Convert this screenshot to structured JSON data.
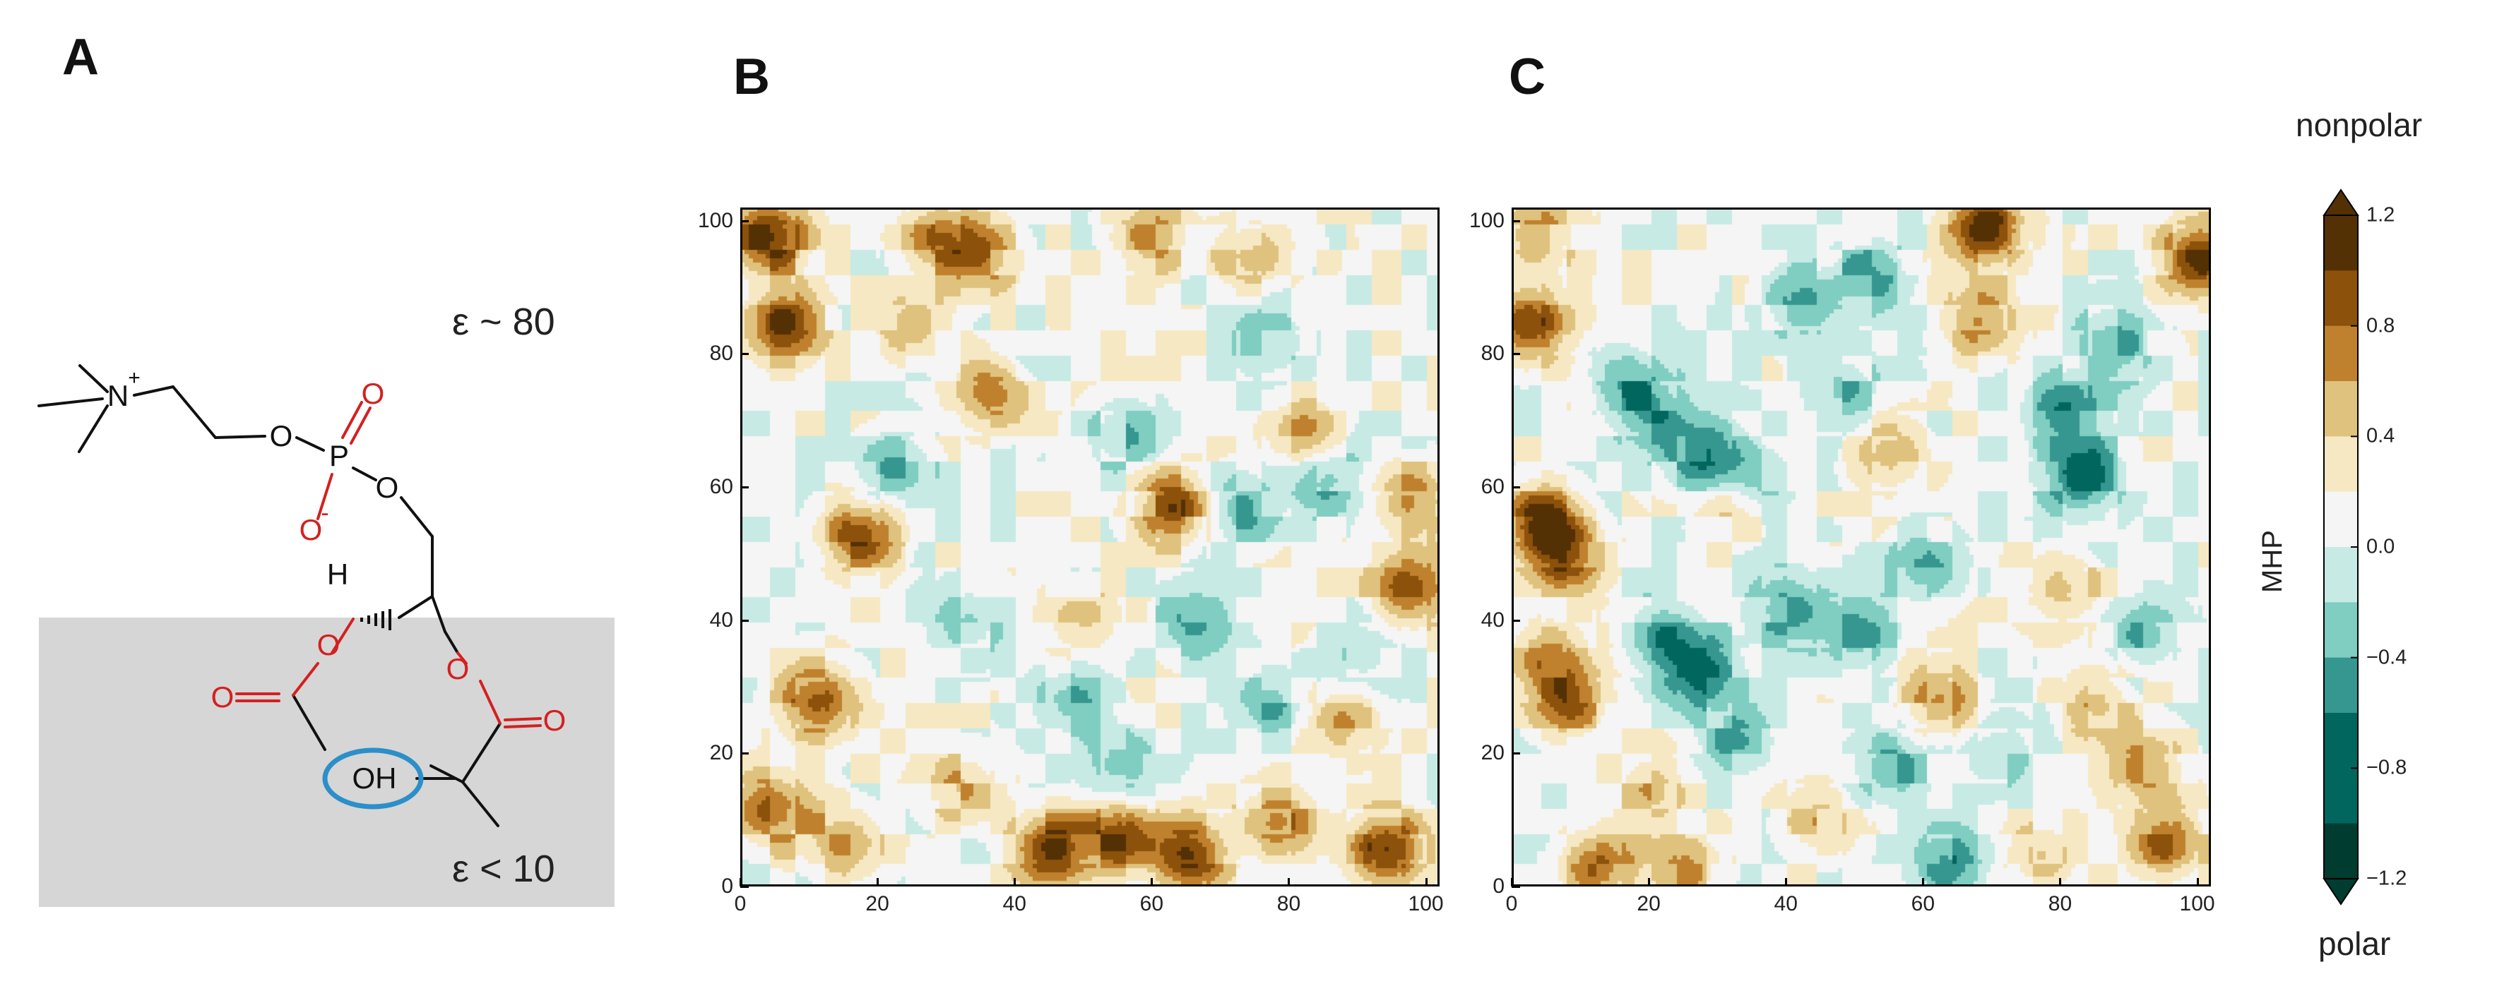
{
  "panels": {
    "a": "A",
    "b": "B",
    "c": "C"
  },
  "molecule": {
    "epsilon_top": "ε ~ 80",
    "epsilon_bottom": "ε < 10",
    "atom_N": "N",
    "charge_plus": "+",
    "atom_P": "P",
    "atom_O_labels": [
      "O",
      "O",
      "O",
      "O",
      "O",
      "O",
      "O"
    ],
    "charge_minus": "-",
    "atom_H": "H",
    "hydroxyl": "OH",
    "colors": {
      "ester": "#d42020",
      "hydroxyl_ring": "#2b8fc9",
      "membrane": "#d6d6d6",
      "bonds": "#111111"
    }
  },
  "chart_data": [
    {
      "type": "heatmap",
      "panel": "B",
      "x_ticks": [
        "0",
        "20",
        "40",
        "60",
        "80",
        "100"
      ],
      "y_ticks": [
        "0",
        "20",
        "40",
        "60",
        "80",
        "100"
      ],
      "xlim": [
        0,
        102
      ],
      "ylim": [
        0,
        102
      ],
      "grid": false,
      "hotspots": [
        {
          "x": 4,
          "y": 98,
          "v": 1.1
        },
        {
          "x": 6,
          "y": 85,
          "v": 0.9
        },
        {
          "x": 28,
          "y": 98,
          "v": 0.7
        },
        {
          "x": 35,
          "y": 95,
          "v": 0.6
        },
        {
          "x": 60,
          "y": 98,
          "v": 0.5
        },
        {
          "x": 75,
          "y": 95,
          "v": 0.5
        },
        {
          "x": 37,
          "y": 75,
          "v": 0.8
        },
        {
          "x": 17,
          "y": 53,
          "v": 0.9
        },
        {
          "x": 63,
          "y": 57,
          "v": 0.9
        },
        {
          "x": 97,
          "y": 58,
          "v": 0.6
        },
        {
          "x": 97,
          "y": 45,
          "v": 0.8
        },
        {
          "x": 11,
          "y": 28,
          "v": 0.9
        },
        {
          "x": 4,
          "y": 12,
          "v": 0.8
        },
        {
          "x": 15,
          "y": 7,
          "v": 0.6
        },
        {
          "x": 45,
          "y": 6,
          "v": 1.0
        },
        {
          "x": 55,
          "y": 8,
          "v": 0.9
        },
        {
          "x": 65,
          "y": 5,
          "v": 1.0
        },
        {
          "x": 78,
          "y": 10,
          "v": 0.7
        },
        {
          "x": 94,
          "y": 6,
          "v": 1.1
        },
        {
          "x": 88,
          "y": 25,
          "v": 0.5
        },
        {
          "x": 25,
          "y": 85,
          "v": 0.4
        },
        {
          "x": 50,
          "y": 40,
          "v": 0.4
        },
        {
          "x": 82,
          "y": 68,
          "v": 0.5
        },
        {
          "x": 32,
          "y": 15,
          "v": 0.5
        },
        {
          "x": 56,
          "y": 68,
          "v": -0.4
        },
        {
          "x": 72,
          "y": 57,
          "v": -0.5
        },
        {
          "x": 85,
          "y": 62,
          "v": -0.5
        },
        {
          "x": 22,
          "y": 63,
          "v": -0.5
        },
        {
          "x": 48,
          "y": 28,
          "v": -0.4
        },
        {
          "x": 77,
          "y": 28,
          "v": -0.4
        },
        {
          "x": 55,
          "y": 18,
          "v": -0.4
        },
        {
          "x": 40,
          "y": 78,
          "v": -0.3
        },
        {
          "x": 77,
          "y": 82,
          "v": -0.4
        },
        {
          "x": 90,
          "y": 35,
          "v": -0.3
        },
        {
          "x": 33,
          "y": 40,
          "v": -0.3
        },
        {
          "x": 66,
          "y": 40,
          "v": -0.4
        }
      ]
    },
    {
      "type": "heatmap",
      "panel": "C",
      "x_ticks": [
        "0",
        "20",
        "40",
        "60",
        "80",
        "100"
      ],
      "y_ticks": [
        "0",
        "20",
        "40",
        "60",
        "80",
        "100"
      ],
      "xlim": [
        0,
        102
      ],
      "ylim": [
        0,
        102
      ],
      "grid": false,
      "hotspots": [
        {
          "x": 69,
          "y": 99,
          "v": 1.1
        },
        {
          "x": 100,
          "y": 95,
          "v": 1.0
        },
        {
          "x": 2,
          "y": 85,
          "v": 1.0
        },
        {
          "x": 4,
          "y": 55,
          "v": 1.0
        },
        {
          "x": 8,
          "y": 50,
          "v": 0.8
        },
        {
          "x": 3,
          "y": 98,
          "v": 0.6
        },
        {
          "x": 5,
          "y": 35,
          "v": 0.6
        },
        {
          "x": 8,
          "y": 28,
          "v": 0.7
        },
        {
          "x": 12,
          "y": 3,
          "v": 0.8
        },
        {
          "x": 25,
          "y": 3,
          "v": 0.5
        },
        {
          "x": 33,
          "y": 58,
          "v": 0.6
        },
        {
          "x": 55,
          "y": 65,
          "v": 0.5
        },
        {
          "x": 68,
          "y": 85,
          "v": 0.6
        },
        {
          "x": 62,
          "y": 28,
          "v": 0.6
        },
        {
          "x": 80,
          "y": 45,
          "v": 0.5
        },
        {
          "x": 85,
          "y": 28,
          "v": 0.5
        },
        {
          "x": 95,
          "y": 7,
          "v": 0.8
        },
        {
          "x": 92,
          "y": 18,
          "v": 0.6
        },
        {
          "x": 77,
          "y": 5,
          "v": 0.4
        },
        {
          "x": 45,
          "y": 10,
          "v": 0.4
        },
        {
          "x": 20,
          "y": 15,
          "v": 0.4
        },
        {
          "x": 20,
          "y": 72,
          "v": -0.6
        },
        {
          "x": 28,
          "y": 65,
          "v": -0.7
        },
        {
          "x": 35,
          "y": 60,
          "v": -0.6
        },
        {
          "x": 15,
          "y": 78,
          "v": -0.4
        },
        {
          "x": 42,
          "y": 88,
          "v": -0.5
        },
        {
          "x": 52,
          "y": 92,
          "v": -0.5
        },
        {
          "x": 48,
          "y": 75,
          "v": -0.4
        },
        {
          "x": 80,
          "y": 72,
          "v": -0.6
        },
        {
          "x": 83,
          "y": 62,
          "v": -0.8
        },
        {
          "x": 88,
          "y": 82,
          "v": -0.5
        },
        {
          "x": 22,
          "y": 38,
          "v": -0.6
        },
        {
          "x": 28,
          "y": 32,
          "v": -0.7
        },
        {
          "x": 40,
          "y": 42,
          "v": -0.6
        },
        {
          "x": 50,
          "y": 38,
          "v": -0.5
        },
        {
          "x": 33,
          "y": 22,
          "v": -0.5
        },
        {
          "x": 55,
          "y": 18,
          "v": -0.5
        },
        {
          "x": 63,
          "y": 4,
          "v": -0.6
        },
        {
          "x": 60,
          "y": 48,
          "v": -0.5
        },
        {
          "x": 92,
          "y": 38,
          "v": -0.5
        },
        {
          "x": 70,
          "y": 20,
          "v": -0.4
        }
      ]
    }
  ],
  "colorbar": {
    "label": "MHP",
    "top_label": "nonpolar",
    "bottom_label": "polar",
    "range": [
      -1.2,
      1.2
    ],
    "step": 0.2,
    "ticks": [
      "1.2",
      "0.8",
      "0.4",
      "0.0",
      "−0.4",
      "−0.8",
      "−1.2"
    ],
    "tick_values": [
      1.2,
      0.8,
      0.4,
      0.0,
      -0.4,
      -0.8,
      -1.2
    ],
    "palette": [
      "#003c30",
      "#01665e",
      "#35978f",
      "#80cdc1",
      "#c7eae5",
      "#f5f5f5",
      "#f6e8c3",
      "#dfc27d",
      "#bf812d",
      "#8c510a",
      "#543005"
    ]
  }
}
